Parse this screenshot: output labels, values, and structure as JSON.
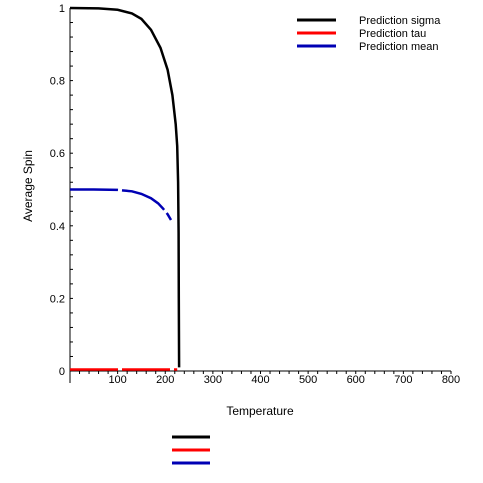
{
  "chart_data": {
    "type": "line",
    "xlabel": "Temperature",
    "ylabel": "Average Spin",
    "xlim": [
      0,
      800
    ],
    "ylim": [
      0,
      1
    ],
    "xticks": [
      "100",
      "200",
      "300",
      "400",
      "500",
      "600",
      "700",
      "800"
    ],
    "yticks": [
      "0",
      "0.2",
      "0.4",
      "0.6",
      "0.8",
      "1"
    ],
    "grid": false,
    "legend_position": "top-right",
    "series": [
      {
        "name": "Prediction sigma",
        "color": "#000000",
        "style": "solid",
        "points": [
          [
            0,
            1.0
          ],
          [
            60,
            0.999
          ],
          [
            100,
            0.995
          ],
          [
            130,
            0.985
          ],
          [
            150,
            0.97
          ],
          [
            170,
            0.94
          ],
          [
            190,
            0.89
          ],
          [
            205,
            0.83
          ],
          [
            215,
            0.76
          ],
          [
            222,
            0.68
          ],
          [
            225,
            0.62
          ],
          [
            227,
            0.52
          ],
          [
            228,
            0.38
          ],
          [
            228.5,
            0.2
          ],
          [
            229,
            0.01
          ]
        ]
      },
      {
        "name": "Prediction tau",
        "color": "#ff0000",
        "style": "dashed",
        "points": [
          [
            0,
            0.004
          ],
          [
            50,
            0.004
          ],
          [
            100,
            0.004
          ],
          [
            150,
            0.004
          ],
          [
            200,
            0.004
          ],
          [
            225,
            0.004
          ]
        ]
      },
      {
        "name": "Prediction mean",
        "color": "#0000b4",
        "style": "dashed",
        "points": [
          [
            0,
            0.5
          ],
          [
            50,
            0.5
          ],
          [
            100,
            0.499
          ],
          [
            130,
            0.495
          ],
          [
            150,
            0.488
          ],
          [
            170,
            0.476
          ],
          [
            185,
            0.462
          ],
          [
            195,
            0.448
          ],
          [
            205,
            0.432
          ],
          [
            212,
            0.416
          ]
        ]
      }
    ]
  }
}
